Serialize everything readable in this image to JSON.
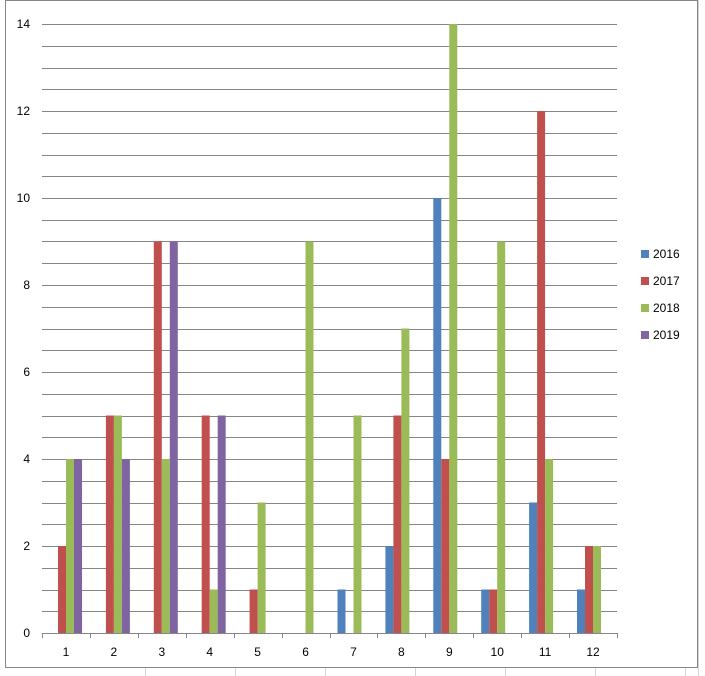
{
  "chart_data": {
    "type": "bar",
    "title": "",
    "xlabel": "",
    "ylabel": "",
    "categories": [
      "1",
      "2",
      "3",
      "4",
      "5",
      "6",
      "7",
      "8",
      "9",
      "10",
      "11",
      "12"
    ],
    "ylim": [
      0,
      14
    ],
    "yticks": [
      0,
      2,
      4,
      6,
      8,
      10,
      12,
      14
    ],
    "minor_grid_step": 0.5,
    "grid": true,
    "legend_position": "right",
    "series": [
      {
        "name": "2016",
        "color": "#4F81BD",
        "values": [
          0,
          0,
          0,
          0,
          0,
          0,
          1,
          2,
          10,
          1,
          3,
          1
        ]
      },
      {
        "name": "2017",
        "color": "#C0504D",
        "values": [
          2,
          5,
          9,
          5,
          1,
          0,
          0,
          5,
          4,
          1,
          12,
          2
        ]
      },
      {
        "name": "2018",
        "color": "#9BBB59",
        "values": [
          4,
          5,
          4,
          1,
          3,
          9,
          5,
          7,
          14,
          9,
          4,
          2
        ]
      },
      {
        "name": "2019",
        "color": "#8064A2",
        "values": [
          4,
          4,
          9,
          5,
          0,
          0,
          0,
          0,
          0,
          0,
          0,
          0
        ]
      }
    ]
  }
}
